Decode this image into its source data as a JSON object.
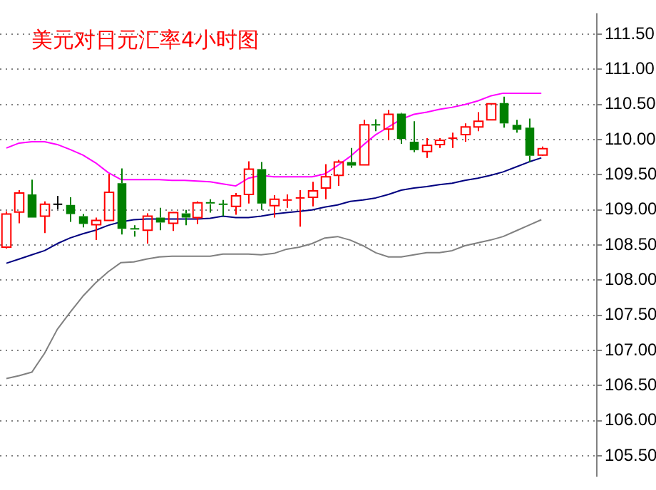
{
  "chart_data": {
    "type": "candlestick",
    "title": "美元对日元汇率4小时图",
    "categories": [
      null,
      null,
      null,
      null,
      null,
      null,
      null,
      null,
      null,
      null,
      null,
      null,
      null,
      null,
      null,
      null,
      null,
      null,
      null,
      null,
      null,
      null,
      null,
      null,
      null,
      null,
      null,
      null,
      null,
      null,
      null,
      null,
      null,
      null,
      null,
      null,
      null,
      null,
      null,
      null,
      null,
      null,
      null
    ],
    "ohlc": [
      [
        108.47,
        108.98,
        108.45,
        108.94
      ],
      [
        108.97,
        109.28,
        108.81,
        109.24
      ],
      [
        109.22,
        109.43,
        108.89,
        108.89
      ],
      [
        108.91,
        109.12,
        108.67,
        109.08
      ],
      [
        109.08,
        109.2,
        109.01,
        109.08
      ],
      [
        109.07,
        109.18,
        108.83,
        108.94
      ],
      [
        108.91,
        108.94,
        108.75,
        108.8
      ],
      [
        108.79,
        108.89,
        108.57,
        108.85
      ],
      [
        108.85,
        109.51,
        108.85,
        109.25
      ],
      [
        109.38,
        109.59,
        108.65,
        108.73
      ],
      [
        108.73,
        108.78,
        108.62,
        108.7
      ],
      [
        108.71,
        108.95,
        108.52,
        108.91
      ],
      [
        108.89,
        109.03,
        108.71,
        108.82
      ],
      [
        108.81,
        108.97,
        108.7,
        108.96
      ],
      [
        108.95,
        109,
        108.78,
        108.89
      ],
      [
        108.89,
        109.12,
        108.8,
        109.1
      ],
      [
        109.1,
        109.15,
        108.96,
        109.08
      ],
      [
        109.08,
        109.14,
        108.91,
        109.07
      ],
      [
        109.05,
        109.24,
        108.93,
        109.2
      ],
      [
        109.22,
        109.69,
        109.09,
        109.58
      ],
      [
        109.58,
        109.68,
        109,
        109.09
      ],
      [
        109.06,
        109.21,
        108.89,
        109.15
      ],
      [
        109.13,
        109.22,
        109.03,
        109.14
      ],
      [
        109.16,
        109.28,
        108.76,
        109.17
      ],
      [
        109.18,
        109.4,
        109.05,
        109.27
      ],
      [
        109.31,
        109.65,
        109.15,
        109.47
      ],
      [
        109.49,
        109.71,
        109.34,
        109.68
      ],
      [
        109.68,
        109.88,
        109.6,
        109.63
      ],
      [
        109.64,
        110.28,
        109.64,
        110.21
      ],
      [
        110.21,
        110.29,
        110.12,
        110.2
      ],
      [
        110.15,
        110.42,
        109.99,
        110.36
      ],
      [
        110.37,
        110.38,
        109.94,
        110.01
      ],
      [
        109.97,
        110.26,
        109.82,
        109.85
      ],
      [
        109.83,
        110.02,
        109.74,
        109.92
      ],
      [
        109.93,
        110.02,
        109.88,
        109.99
      ],
      [
        110.01,
        110.1,
        109.88,
        110.02
      ],
      [
        110.07,
        110.23,
        109.97,
        110.18
      ],
      [
        110.18,
        110.39,
        110.12,
        110.26
      ],
      [
        110.28,
        110.51,
        110.28,
        110.51
      ],
      [
        110.52,
        110.61,
        110.17,
        110.23
      ],
      [
        110.21,
        110.28,
        110.1,
        110.14
      ],
      [
        110.17,
        110.3,
        109.68,
        109.77
      ],
      [
        109.78,
        109.9,
        109.77,
        109.87
      ]
    ],
    "colors": [
      "#ff0000",
      "#ff0000",
      "#008000",
      "#ff0000",
      "#000000",
      "#008000",
      "#008000",
      "#ff0000",
      "#ff0000",
      "#008000",
      "#008000",
      "#ff0000",
      "#008000",
      "#ff0000",
      "#008000",
      "#ff0000",
      "#008000",
      "#008000",
      "#ff0000",
      "#ff0000",
      "#008000",
      "#ff0000",
      "#ff0000",
      "#ff0000",
      "#ff0000",
      "#ff0000",
      "#ff0000",
      "#008000",
      "#ff0000",
      "#008000",
      "#ff0000",
      "#008000",
      "#008000",
      "#ff0000",
      "#ff0000",
      "#ff0000",
      "#ff0000",
      "#ff0000",
      "#ff0000",
      "#008000",
      "#008000",
      "#008000",
      "#ff0000"
    ],
    "series": [
      {
        "type": "line",
        "color": "#ff00ff",
        "values": [
          109.88,
          109.95,
          109.97,
          109.97,
          109.93,
          109.86,
          109.78,
          109.67,
          109.53,
          109.43,
          109.43,
          109.43,
          109.43,
          109.42,
          109.42,
          109.41,
          109.4,
          109.37,
          109.34,
          109.45,
          109.49,
          109.47,
          109.47,
          109.47,
          109.47,
          109.51,
          109.63,
          109.76,
          109.92,
          110.07,
          110.18,
          110.29,
          110.36,
          110.39,
          110.43,
          110.46,
          110.5,
          110.55,
          110.62,
          110.66,
          110.66,
          110.66,
          110.66
        ]
      },
      {
        "type": "line",
        "color": "#000080",
        "values": [
          108.24,
          108.3,
          108.36,
          108.42,
          108.52,
          108.6,
          108.66,
          108.71,
          108.78,
          108.83,
          108.86,
          108.87,
          108.87,
          108.87,
          108.87,
          108.87,
          108.88,
          108.91,
          108.89,
          108.89,
          108.91,
          108.94,
          108.96,
          108.98,
          109,
          109.04,
          109.07,
          109.12,
          109.14,
          109.17,
          109.22,
          109.28,
          109.31,
          109.33,
          109.36,
          109.38,
          109.42,
          109.45,
          109.49,
          109.54,
          109.61,
          109.68,
          109.74
        ]
      },
      {
        "type": "line",
        "color": "#808080",
        "values": [
          106.6,
          106.64,
          106.69,
          106.96,
          107.3,
          107.54,
          107.77,
          107.96,
          108.12,
          108.25,
          108.26,
          108.3,
          108.33,
          108.34,
          108.34,
          108.34,
          108.34,
          108.37,
          108.37,
          108.37,
          108.36,
          108.38,
          108.44,
          108.47,
          108.52,
          108.6,
          108.62,
          108.57,
          108.49,
          108.39,
          108.33,
          108.33,
          108.36,
          108.39,
          108.39,
          108.42,
          108.49,
          108.53,
          108.57,
          108.62,
          108.7,
          108.78,
          108.86
        ]
      }
    ],
    "ylim": [
      105.2,
      111.8
    ],
    "yticks": [
      {
        "value": 105.5,
        "label": "105.50"
      },
      {
        "value": 106,
        "label": "106.00"
      },
      {
        "value": 106.5,
        "label": "106.50"
      },
      {
        "value": 107,
        "label": "107.00"
      },
      {
        "value": 107.5,
        "label": "107.50"
      },
      {
        "value": 108,
        "label": "108.00"
      },
      {
        "value": 108.5,
        "label": "108.50"
      },
      {
        "value": 109,
        "label": "109.00"
      },
      {
        "value": 109.5,
        "label": "109.50"
      },
      {
        "value": 110,
        "label": "110.00"
      },
      {
        "value": 110.5,
        "label": "110.50"
      },
      {
        "value": 111,
        "label": "111.00"
      },
      {
        "value": 111.5,
        "label": "111.50"
      }
    ],
    "grid": "y",
    "legend": false
  }
}
